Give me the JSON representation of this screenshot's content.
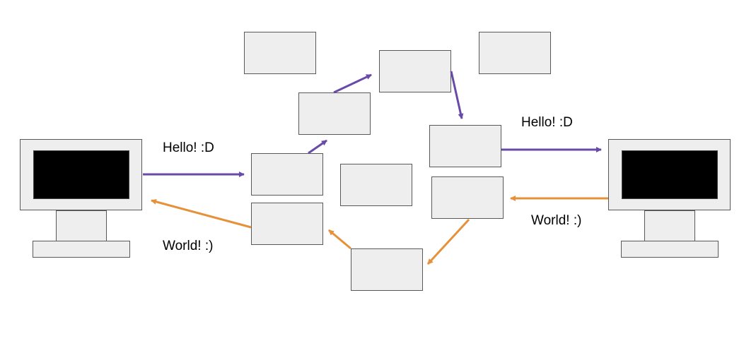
{
  "labels": {
    "left_hello": "Hello! :D",
    "left_world": "World! :)",
    "right_hello": "Hello! :D",
    "right_world": "World! :)"
  },
  "colors": {
    "hello_arrow": "#6a4aa8",
    "world_arrow": "#e6913a",
    "box_fill": "#eeeeee",
    "box_stroke": "#595959",
    "screen": "#000000"
  },
  "icons": {
    "left_computer": "computer-icon",
    "right_computer": "computer-icon"
  }
}
